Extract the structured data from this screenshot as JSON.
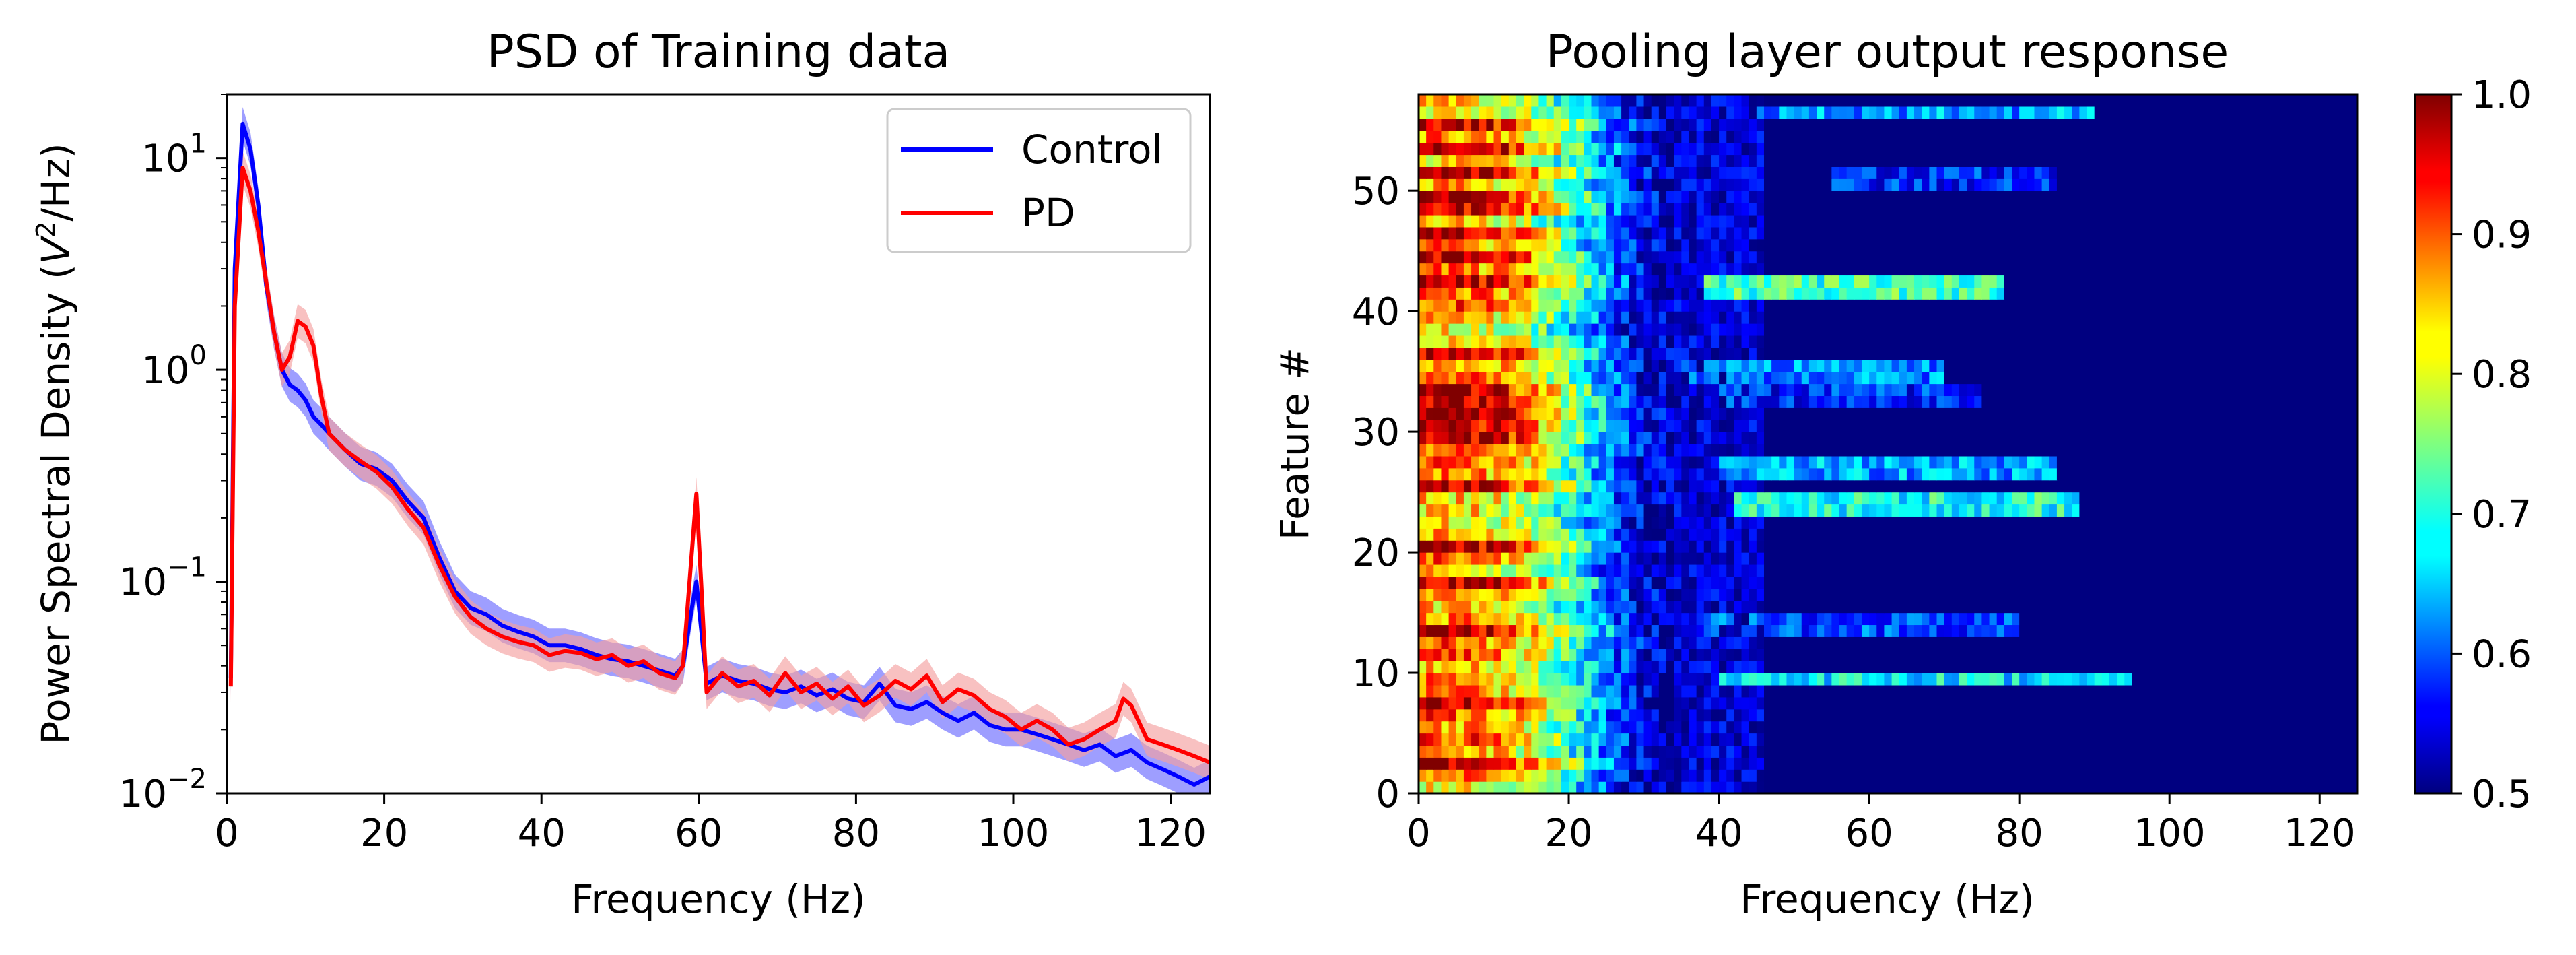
{
  "chart_data": [
    {
      "type": "line",
      "title": "PSD of Training data",
      "xlabel": "Frequency (Hz)",
      "ylabel_main": "Power Spectral Density (",
      "ylabel_var": "V",
      "ylabel_exp": "2",
      "ylabel_tail": "/Hz)",
      "xlim": [
        0,
        125
      ],
      "ylim": [
        0.01,
        20
      ],
      "yscale": "log",
      "x_ticks": [
        "0",
        "20",
        "40",
        "60",
        "80",
        "100",
        "120"
      ],
      "y_ticks": [
        {
          "base": "10",
          "exp": "1",
          "value": 10
        },
        {
          "base": "10",
          "exp": "0",
          "value": 1
        },
        {
          "base": "10",
          "exp": "−1",
          "value": 0.1
        },
        {
          "base": "10",
          "exp": "−2",
          "value": 0.01
        }
      ],
      "legend_position": "top-right",
      "series": [
        {
          "name": "Control",
          "color": "#0000ff",
          "band_color": "#6a6aff",
          "points": [
            [
              0.5,
              0.035
            ],
            [
              1,
              3
            ],
            [
              2,
              14.5
            ],
            [
              3,
              11
            ],
            [
              4,
              6
            ],
            [
              5,
              2.5
            ],
            [
              6,
              1.5
            ],
            [
              7,
              1.0
            ],
            [
              8,
              0.85
            ],
            [
              9,
              0.8
            ],
            [
              10,
              0.72
            ],
            [
              11,
              0.6
            ],
            [
              12,
              0.55
            ],
            [
              13,
              0.5
            ],
            [
              15,
              0.42
            ],
            [
              17,
              0.36
            ],
            [
              19,
              0.34
            ],
            [
              21,
              0.3
            ],
            [
              23,
              0.24
            ],
            [
              25,
              0.2
            ],
            [
              27,
              0.13
            ],
            [
              29,
              0.09
            ],
            [
              31,
              0.075
            ],
            [
              33,
              0.07
            ],
            [
              35,
              0.062
            ],
            [
              37,
              0.058
            ],
            [
              39,
              0.055
            ],
            [
              41,
              0.05
            ],
            [
              43,
              0.05
            ],
            [
              45,
              0.048
            ],
            [
              47,
              0.045
            ],
            [
              49,
              0.043
            ],
            [
              51,
              0.042
            ],
            [
              53,
              0.04
            ],
            [
              55,
              0.038
            ],
            [
              57,
              0.036
            ],
            [
              58,
              0.04
            ],
            [
              59,
              0.07
            ],
            [
              59.7,
              0.1
            ],
            [
              60.3,
              0.06
            ],
            [
              61,
              0.033
            ],
            [
              63,
              0.036
            ],
            [
              65,
              0.034
            ],
            [
              67,
              0.033
            ],
            [
              69,
              0.031
            ],
            [
              71,
              0.03
            ],
            [
              73,
              0.032
            ],
            [
              75,
              0.029
            ],
            [
              77,
              0.031
            ],
            [
              79,
              0.028
            ],
            [
              81,
              0.027
            ],
            [
              83,
              0.033
            ],
            [
              85,
              0.026
            ],
            [
              87,
              0.025
            ],
            [
              89,
              0.027
            ],
            [
              91,
              0.024
            ],
            [
              93,
              0.022
            ],
            [
              95,
              0.024
            ],
            [
              97,
              0.021
            ],
            [
              99,
              0.02
            ],
            [
              101,
              0.02
            ],
            [
              103,
              0.019
            ],
            [
              105,
              0.018
            ],
            [
              107,
              0.017
            ],
            [
              109,
              0.016
            ],
            [
              111,
              0.017
            ],
            [
              113,
              0.015
            ],
            [
              115,
              0.016
            ],
            [
              117,
              0.014
            ],
            [
              119,
              0.013
            ],
            [
              121,
              0.012
            ],
            [
              123,
              0.011
            ],
            [
              125,
              0.012
            ]
          ]
        },
        {
          "name": "PD",
          "color": "#ff0000",
          "band_color": "#f4a0a0",
          "points": [
            [
              0.5,
              0.032
            ],
            [
              1,
              2
            ],
            [
              2,
              9
            ],
            [
              3,
              7
            ],
            [
              4,
              4.5
            ],
            [
              5,
              2.6
            ],
            [
              6,
              1.5
            ],
            [
              7,
              1.0
            ],
            [
              8,
              1.15
            ],
            [
              9,
              1.7
            ],
            [
              10,
              1.6
            ],
            [
              11,
              1.3
            ],
            [
              12,
              0.75
            ],
            [
              13,
              0.5
            ],
            [
              15,
              0.42
            ],
            [
              17,
              0.37
            ],
            [
              19,
              0.33
            ],
            [
              21,
              0.28
            ],
            [
              23,
              0.22
            ],
            [
              25,
              0.18
            ],
            [
              27,
              0.12
            ],
            [
              29,
              0.085
            ],
            [
              31,
              0.068
            ],
            [
              33,
              0.06
            ],
            [
              35,
              0.055
            ],
            [
              37,
              0.052
            ],
            [
              39,
              0.05
            ],
            [
              41,
              0.045
            ],
            [
              43,
              0.047
            ],
            [
              45,
              0.046
            ],
            [
              47,
              0.043
            ],
            [
              49,
              0.045
            ],
            [
              51,
              0.04
            ],
            [
              53,
              0.042
            ],
            [
              55,
              0.037
            ],
            [
              57,
              0.035
            ],
            [
              58,
              0.04
            ],
            [
              59,
              0.12
            ],
            [
              59.7,
              0.26
            ],
            [
              60.3,
              0.1
            ],
            [
              61,
              0.03
            ],
            [
              63,
              0.037
            ],
            [
              65,
              0.032
            ],
            [
              67,
              0.034
            ],
            [
              69,
              0.029
            ],
            [
              71,
              0.037
            ],
            [
              73,
              0.03
            ],
            [
              75,
              0.033
            ],
            [
              77,
              0.028
            ],
            [
              79,
              0.032
            ],
            [
              81,
              0.026
            ],
            [
              83,
              0.029
            ],
            [
              85,
              0.034
            ],
            [
              87,
              0.031
            ],
            [
              89,
              0.036
            ],
            [
              91,
              0.027
            ],
            [
              93,
              0.031
            ],
            [
              95,
              0.029
            ],
            [
              97,
              0.025
            ],
            [
              99,
              0.023
            ],
            [
              101,
              0.02
            ],
            [
              103,
              0.022
            ],
            [
              105,
              0.02
            ],
            [
              107,
              0.017
            ],
            [
              109,
              0.018
            ],
            [
              111,
              0.02
            ],
            [
              113,
              0.022
            ],
            [
              114,
              0.028
            ],
            [
              115,
              0.026
            ],
            [
              117,
              0.018
            ],
            [
              119,
              0.017
            ],
            [
              121,
              0.016
            ],
            [
              123,
              0.015
            ],
            [
              125,
              0.014
            ]
          ]
        }
      ]
    },
    {
      "type": "heatmap",
      "title": "Pooling layer output response",
      "xlabel": "Frequency (Hz)",
      "ylabel": "Feature #",
      "xlim": [
        0,
        125
      ],
      "ylim": [
        0,
        58
      ],
      "x_ticks": [
        "0",
        "20",
        "40",
        "60",
        "80",
        "100",
        "120"
      ],
      "y_ticks": [
        "0",
        "10",
        "20",
        "30",
        "40",
        "50"
      ],
      "colormap": "jet",
      "colorbar": {
        "min": 0.5,
        "max": 1.0,
        "ticks": [
          "0.5",
          "0.6",
          "0.7",
          "0.8",
          "0.9",
          "1.0"
        ]
      },
      "n_features": 58,
      "n_freq_bins": 125,
      "strong_low_freq_features": [
        2,
        7,
        13,
        17,
        20,
        25,
        29,
        30,
        31,
        32,
        33,
        36,
        42,
        44,
        46,
        48,
        49,
        51,
        53,
        55
      ],
      "high_freq_bands": [
        {
          "feature": 9.5,
          "from_hz": 40,
          "to_hz": 95,
          "level": 0.7
        },
        {
          "feature": 14,
          "from_hz": 38,
          "to_hz": 80,
          "level": 0.62
        },
        {
          "feature": 24,
          "from_hz": 42,
          "to_hz": 88,
          "level": 0.72
        },
        {
          "feature": 27,
          "from_hz": 40,
          "to_hz": 85,
          "level": 0.66
        },
        {
          "feature": 33,
          "from_hz": 40,
          "to_hz": 75,
          "level": 0.6
        },
        {
          "feature": 35,
          "from_hz": 35,
          "to_hz": 70,
          "level": 0.65
        },
        {
          "feature": 42,
          "from_hz": 38,
          "to_hz": 78,
          "level": 0.74
        },
        {
          "feature": 51,
          "from_hz": 55,
          "to_hz": 85,
          "level": 0.6
        },
        {
          "feature": 56.5,
          "from_hz": 45,
          "to_hz": 90,
          "level": 0.66
        }
      ]
    }
  ]
}
